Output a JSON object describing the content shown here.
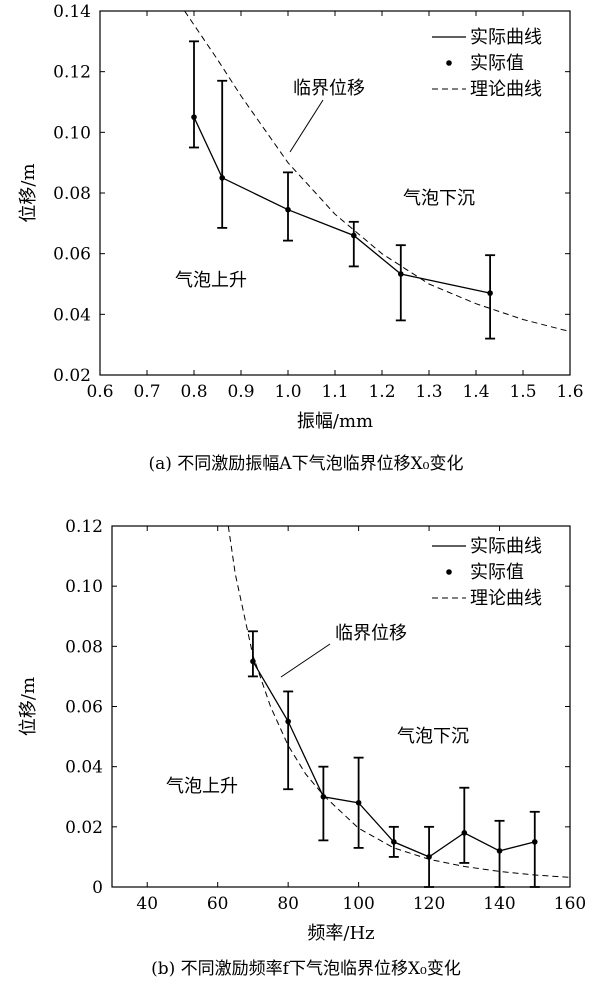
{
  "chart_data": [
    {
      "type": "line",
      "caption": "(a)  不同激励振幅A下气泡临界位移X₀变化",
      "xlabel": "振幅/mm",
      "ylabel": "位移/m",
      "xlim": [
        0.6,
        1.6
      ],
      "ylim": [
        0.02,
        0.14
      ],
      "xticks": [
        "0.6",
        "0.7",
        "0.8",
        "0.9",
        "1.0",
        "1.1",
        "1.2",
        "1.3",
        "1.4",
        "1.5",
        "1.6"
      ],
      "yticks": [
        "0.02",
        "0.04",
        "0.06",
        "0.08",
        "0.10",
        "0.12",
        "0.14"
      ],
      "grid": false,
      "legend_position": "top-right",
      "legend": [
        "实际曲线",
        "实际值",
        "理论曲线"
      ],
      "series": [
        {
          "name": "实际值",
          "x": [
            0.8,
            0.86,
            1.0,
            1.14,
            1.24,
            1.43
          ],
          "y": [
            0.105,
            0.085,
            0.0745,
            0.066,
            0.0533,
            0.047
          ],
          "err_low": [
            0.095,
            0.0685,
            0.0643,
            0.0558,
            0.038,
            0.032
          ],
          "err_high": [
            0.13,
            0.117,
            0.0868,
            0.0705,
            0.0628,
            0.0595
          ]
        },
        {
          "name": "理论曲线",
          "x": [
            0.78,
            0.85,
            0.9,
            1.0,
            1.1,
            1.2,
            1.3,
            1.4,
            1.5,
            1.6
          ],
          "y": [
            0.14,
            0.124,
            0.112,
            0.09,
            0.073,
            0.06,
            0.05,
            0.0435,
            0.0383,
            0.0343
          ]
        }
      ],
      "annotations": [
        "临界位移",
        "气泡下沉",
        "气泡上升"
      ]
    },
    {
      "type": "line",
      "caption": "(b)  不同激励频率f下气泡临界位移X₀变化",
      "xlabel": "频率/Hz",
      "ylabel": "位移/m",
      "xlim": [
        30,
        160
      ],
      "ylim": [
        0,
        0.12
      ],
      "xticks": [
        "40",
        "60",
        "80",
        "100",
        "120",
        "140",
        "160"
      ],
      "yticks": [
        "0",
        "0.02",
        "0.04",
        "0.06",
        "0.08",
        "0.10",
        "0.12"
      ],
      "grid": false,
      "legend_position": "top-right",
      "legend": [
        "实际曲线",
        "实际值",
        "理论曲线"
      ],
      "series": [
        {
          "name": "实际值",
          "x": [
            70,
            80,
            90,
            100,
            110,
            120,
            130,
            140,
            150
          ],
          "y": [
            0.075,
            0.055,
            0.03,
            0.028,
            0.015,
            0.01,
            0.018,
            0.012,
            0.015
          ],
          "err_low": [
            0.07,
            0.0325,
            0.0155,
            0.013,
            0.01,
            0.0,
            0.008,
            0.0,
            0.0
          ],
          "err_high": [
            0.085,
            0.065,
            0.04,
            0.043,
            0.02,
            0.02,
            0.033,
            0.022,
            0.025
          ]
        },
        {
          "name": "理论曲线",
          "x": [
            63,
            65,
            70,
            75,
            80,
            85,
            90,
            100,
            110,
            120,
            130,
            140,
            150,
            160
          ],
          "y": [
            0.12,
            0.104,
            0.077,
            0.06,
            0.047,
            0.0375,
            0.0305,
            0.0195,
            0.013,
            0.0092,
            0.0068,
            0.0052,
            0.004,
            0.0032
          ]
        }
      ],
      "annotations": [
        "临界位移",
        "气泡下沉",
        "气泡上升"
      ]
    }
  ]
}
